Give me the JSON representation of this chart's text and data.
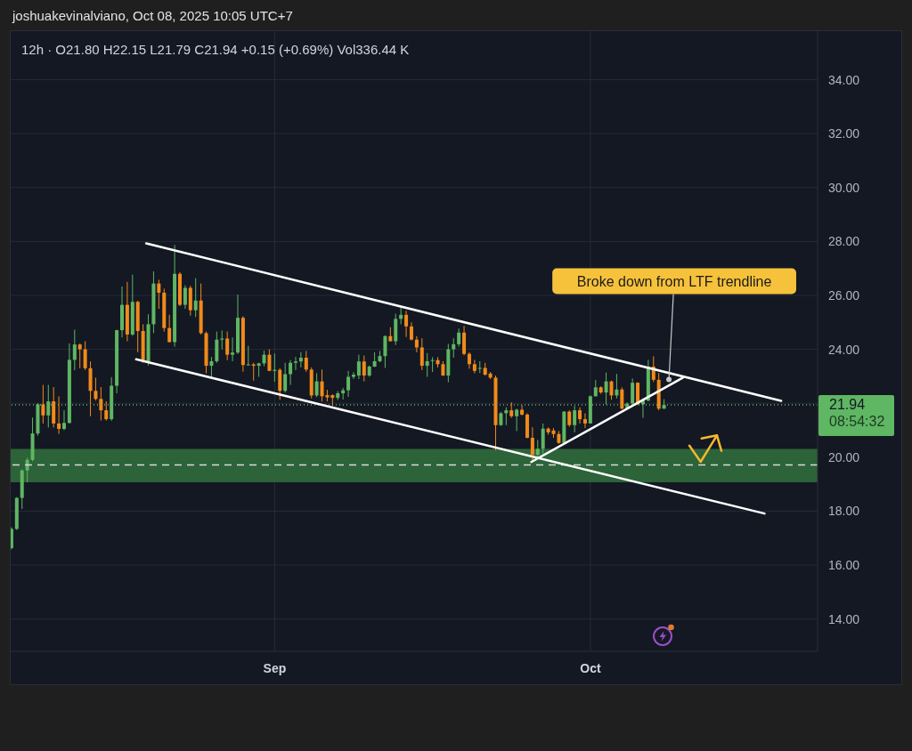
{
  "chart_data": {
    "type": "candlestick",
    "title": "12h · O21.80 H22.15 L21.79 C21.94 +0.15 (+0.69%) Vol336.44 K",
    "x": [
      "2025-08-07T00:00",
      "2025-08-07T12:00",
      "2025-08-08T00:00",
      "2025-08-08T12:00",
      "2025-08-09T00:00",
      "2025-08-09T12:00",
      "2025-08-10T00:00",
      "2025-08-10T12:00",
      "2025-08-11T00:00",
      "2025-08-11T12:00",
      "2025-08-12T00:00",
      "2025-08-12T12:00",
      "2025-08-13T00:00",
      "2025-08-13T12:00",
      "2025-08-14T00:00",
      "2025-08-14T12:00",
      "2025-08-15T00:00",
      "2025-08-15T12:00",
      "2025-08-16T00:00",
      "2025-08-16T12:00",
      "2025-08-17T00:00",
      "2025-08-17T12:00",
      "2025-08-18T00:00",
      "2025-08-18T12:00",
      "2025-08-19T00:00",
      "2025-08-19T12:00",
      "2025-08-20T00:00",
      "2025-08-20T12:00",
      "2025-08-21T00:00",
      "2025-08-21T12:00",
      "2025-08-22T00:00",
      "2025-08-22T12:00",
      "2025-08-23T00:00",
      "2025-08-23T12:00",
      "2025-08-24T00:00",
      "2025-08-24T12:00",
      "2025-08-25T00:00",
      "2025-08-25T12:00",
      "2025-08-26T00:00",
      "2025-08-26T12:00",
      "2025-08-27T00:00",
      "2025-08-27T12:00",
      "2025-08-28T00:00",
      "2025-08-28T12:00",
      "2025-08-29T00:00",
      "2025-08-29T12:00",
      "2025-08-30T00:00",
      "2025-08-30T12:00",
      "2025-08-31T00:00",
      "2025-08-31T12:00",
      "2025-09-01T00:00",
      "2025-09-01T12:00",
      "2025-09-02T00:00",
      "2025-09-02T12:00",
      "2025-09-03T00:00",
      "2025-09-03T12:00",
      "2025-09-04T00:00",
      "2025-09-04T12:00",
      "2025-09-05T00:00",
      "2025-09-05T12:00",
      "2025-09-06T00:00",
      "2025-09-06T12:00",
      "2025-09-07T00:00",
      "2025-09-07T12:00",
      "2025-09-08T00:00",
      "2025-09-08T12:00",
      "2025-09-09T00:00",
      "2025-09-09T12:00",
      "2025-09-10T00:00",
      "2025-09-10T12:00",
      "2025-09-11T00:00",
      "2025-09-11T12:00",
      "2025-09-12T00:00",
      "2025-09-12T12:00",
      "2025-09-13T00:00",
      "2025-09-13T12:00",
      "2025-09-14T00:00",
      "2025-09-14T12:00",
      "2025-09-15T00:00",
      "2025-09-15T12:00",
      "2025-09-16T00:00",
      "2025-09-16T12:00",
      "2025-09-17T00:00",
      "2025-09-17T12:00",
      "2025-09-18T00:00",
      "2025-09-18T12:00",
      "2025-09-19T00:00",
      "2025-09-19T12:00",
      "2025-09-20T00:00",
      "2025-09-20T12:00",
      "2025-09-21T00:00",
      "2025-09-21T12:00",
      "2025-09-22T00:00",
      "2025-09-22T12:00",
      "2025-09-23T00:00",
      "2025-09-23T12:00",
      "2025-09-24T00:00",
      "2025-09-24T12:00",
      "2025-09-25T00:00",
      "2025-09-25T12:00",
      "2025-09-26T00:00",
      "2025-09-26T12:00",
      "2025-09-27T00:00",
      "2025-09-27T12:00",
      "2025-09-28T00:00",
      "2025-09-28T12:00",
      "2025-09-29T00:00",
      "2025-09-29T12:00",
      "2025-09-30T00:00",
      "2025-09-30T12:00",
      "2025-10-01T00:00",
      "2025-10-01T12:00",
      "2025-10-02T00:00",
      "2025-10-02T12:00",
      "2025-10-03T00:00",
      "2025-10-03T12:00",
      "2025-10-04T00:00",
      "2025-10-04T12:00",
      "2025-10-05T00:00",
      "2025-10-05T12:00",
      "2025-10-06T00:00",
      "2025-10-06T12:00",
      "2025-10-07T00:00",
      "2025-10-07T12:00",
      "2025-10-08T00:00"
    ],
    "ohlc": [
      [
        16.63,
        17.4,
        16.58,
        17.34
      ],
      [
        17.34,
        18.52,
        17.3,
        18.49
      ],
      [
        18.49,
        19.55,
        18.08,
        19.51
      ],
      [
        19.51,
        19.98,
        19.07,
        19.9
      ],
      [
        19.9,
        21.47,
        19.85,
        20.88
      ],
      [
        20.88,
        22.0,
        20.8,
        21.96
      ],
      [
        21.96,
        22.68,
        21.25,
        21.55
      ],
      [
        21.55,
        22.68,
        21.1,
        22.07
      ],
      [
        22.07,
        22.6,
        21.1,
        21.25
      ],
      [
        21.25,
        22.26,
        20.86,
        21.05
      ],
      [
        21.05,
        21.74,
        21.0,
        21.27
      ],
      [
        21.27,
        24.22,
        21.25,
        23.61
      ],
      [
        23.61,
        24.73,
        23.23,
        24.18
      ],
      [
        24.18,
        24.22,
        23.3,
        24.0
      ],
      [
        24.0,
        24.3,
        23.23,
        23.3
      ],
      [
        23.3,
        23.55,
        21.52,
        22.46
      ],
      [
        22.46,
        22.95,
        22.1,
        22.16
      ],
      [
        22.16,
        22.6,
        21.36,
        21.74
      ],
      [
        21.74,
        22.07,
        21.36,
        21.41
      ],
      [
        21.41,
        22.97,
        21.35,
        22.65
      ],
      [
        22.65,
        24.72,
        22.37,
        24.71
      ],
      [
        24.71,
        26.33,
        24.44,
        25.65
      ],
      [
        25.65,
        26.5,
        24.3,
        24.55
      ],
      [
        24.55,
        26.77,
        24.5,
        25.76
      ],
      [
        25.76,
        25.8,
        23.89,
        24.68
      ],
      [
        24.68,
        24.93,
        23.5,
        23.55
      ],
      [
        23.55,
        25.3,
        23.4,
        24.93
      ],
      [
        24.93,
        26.89,
        24.6,
        26.44
      ],
      [
        26.44,
        26.58,
        25.5,
        26.1
      ],
      [
        26.1,
        26.25,
        24.66,
        24.79
      ],
      [
        24.79,
        25.28,
        24.25,
        24.27
      ],
      [
        24.27,
        27.87,
        24.1,
        26.8
      ],
      [
        26.8,
        26.86,
        25.6,
        25.65
      ],
      [
        25.65,
        26.38,
        25.5,
        26.28
      ],
      [
        26.28,
        26.36,
        25.25,
        25.45
      ],
      [
        25.45,
        26.64,
        25.2,
        25.81
      ],
      [
        25.81,
        26.44,
        24.55,
        24.6
      ],
      [
        24.6,
        24.66,
        23.11,
        23.39
      ],
      [
        23.39,
        23.72,
        22.95,
        23.56
      ],
      [
        23.56,
        24.66,
        23.5,
        24.36
      ],
      [
        24.36,
        24.7,
        24.0,
        24.4
      ],
      [
        24.4,
        24.66,
        23.6,
        23.8
      ],
      [
        23.8,
        24.44,
        23.56,
        23.88
      ],
      [
        23.88,
        26.03,
        23.83,
        25.17
      ],
      [
        25.17,
        25.23,
        23.17,
        23.42
      ],
      [
        23.42,
        24.13,
        23.4,
        23.44
      ],
      [
        23.44,
        23.5,
        22.84,
        23.39
      ],
      [
        23.39,
        23.5,
        22.98,
        23.48
      ],
      [
        23.48,
        23.95,
        23.38,
        23.8
      ],
      [
        23.8,
        24.0,
        23.2,
        23.2
      ],
      [
        23.2,
        23.85,
        22.8,
        23.24
      ],
      [
        23.24,
        23.3,
        22.13,
        22.46
      ],
      [
        22.46,
        23.5,
        22.4,
        23.08
      ],
      [
        23.08,
        23.6,
        22.68,
        23.5
      ],
      [
        23.5,
        23.72,
        23.23,
        23.55
      ],
      [
        23.55,
        23.9,
        23.33,
        23.69
      ],
      [
        23.69,
        23.94,
        23.17,
        23.25
      ],
      [
        23.25,
        23.33,
        22.18,
        22.29
      ],
      [
        22.29,
        23.11,
        22.23,
        22.81
      ],
      [
        22.81,
        23.25,
        22.07,
        22.26
      ],
      [
        22.3,
        22.5,
        22.07,
        22.22
      ],
      [
        22.3,
        22.33,
        21.9,
        22.2
      ],
      [
        22.2,
        22.45,
        22.12,
        22.37
      ],
      [
        22.37,
        22.57,
        22.14,
        22.48
      ],
      [
        22.48,
        23.2,
        22.24,
        22.98
      ],
      [
        22.98,
        23.16,
        22.9,
        23.06
      ],
      [
        23.03,
        23.8,
        22.9,
        23.55
      ],
      [
        23.55,
        23.77,
        22.81,
        23.03
      ],
      [
        23.03,
        23.4,
        22.98,
        23.36
      ],
      [
        23.36,
        23.89,
        23.34,
        23.56
      ],
      [
        23.56,
        23.94,
        23.52,
        23.75
      ],
      [
        23.75,
        24.52,
        23.31,
        24.49
      ],
      [
        24.49,
        24.82,
        24.3,
        24.3
      ],
      [
        24.3,
        25.32,
        24.16,
        25.13
      ],
      [
        25.13,
        25.59,
        24.93,
        25.28
      ],
      [
        25.28,
        25.43,
        24.46,
        24.85
      ],
      [
        24.85,
        25.0,
        24.33,
        24.36
      ],
      [
        24.36,
        24.49,
        23.89,
        24.07
      ],
      [
        24.07,
        24.41,
        23.23,
        23.39
      ],
      [
        23.39,
        23.86,
        22.98,
        23.56
      ],
      [
        23.58,
        23.71,
        23.16,
        23.6
      ],
      [
        23.6,
        23.71,
        23.33,
        23.45
      ],
      [
        23.45,
        23.56,
        23.01,
        23.03
      ],
      [
        23.03,
        24.2,
        22.78,
        24.0
      ],
      [
        24.0,
        24.41,
        23.69,
        24.19
      ],
      [
        24.19,
        24.77,
        24.1,
        24.62
      ],
      [
        24.62,
        24.87,
        23.78,
        23.83
      ],
      [
        23.83,
        23.89,
        23.28,
        23.45
      ],
      [
        23.45,
        23.61,
        23.11,
        23.2
      ],
      [
        23.28,
        23.56,
        23.12,
        23.31
      ],
      [
        23.31,
        23.5,
        23.03,
        23.06
      ],
      [
        23.1,
        23.16,
        22.9,
        22.95
      ],
      [
        22.95,
        23.03,
        20.26,
        21.19
      ],
      [
        21.19,
        21.68,
        21.16,
        21.63
      ],
      [
        21.63,
        21.85,
        21.19,
        21.74
      ],
      [
        21.74,
        22.04,
        21.46,
        21.52
      ],
      [
        21.52,
        21.8,
        20.97,
        21.76
      ],
      [
        21.76,
        21.93,
        21.55,
        21.58
      ],
      [
        21.58,
        21.63,
        20.7,
        20.72
      ],
      [
        20.72,
        21.11,
        19.84,
        20.09
      ],
      [
        20.09,
        20.64,
        19.92,
        20.31
      ],
      [
        20.31,
        21.25,
        20.14,
        21.06
      ],
      [
        21.06,
        21.1,
        20.83,
        20.92
      ],
      [
        20.99,
        21.08,
        20.72,
        20.86
      ],
      [
        20.86,
        20.97,
        20.5,
        20.53
      ],
      [
        20.53,
        21.71,
        20.53,
        21.69
      ],
      [
        21.69,
        21.74,
        21.13,
        21.19
      ],
      [
        21.19,
        21.9,
        20.92,
        21.74
      ],
      [
        21.74,
        21.85,
        21.25,
        21.41
      ],
      [
        21.41,
        21.63,
        21.08,
        21.25
      ],
      [
        21.25,
        22.29,
        21.25,
        22.26
      ],
      [
        22.26,
        22.86,
        22.25,
        22.59
      ],
      [
        22.59,
        22.63,
        22.35,
        22.4
      ],
      [
        22.4,
        23.14,
        21.96,
        22.81
      ],
      [
        22.81,
        22.84,
        22.13,
        22.29
      ],
      [
        22.29,
        23.09,
        22.18,
        22.51
      ],
      [
        22.51,
        22.59,
        21.78,
        21.8
      ],
      [
        21.8,
        22.03,
        21.78,
        21.99
      ],
      [
        21.99,
        22.92,
        21.96,
        22.76
      ],
      [
        22.76,
        22.78,
        21.93,
        21.96
      ],
      [
        21.96,
        22.18,
        21.46,
        22.1
      ],
      [
        22.1,
        23.61,
        22.07,
        23.36
      ],
      [
        23.36,
        23.74,
        22.79,
        22.87
      ],
      [
        22.87,
        23.12,
        21.74,
        21.8
      ],
      [
        21.8,
        22.15,
        21.79,
        21.94
      ]
    ],
    "colors": [
      "#5fb663",
      "#5fb663",
      "#5fb663",
      "#5fb663",
      "#5fb663",
      "#5fb663",
      "#f28a1a",
      "#5fb663",
      "#f28a1a",
      "#f28a1a",
      "#5fb663",
      "#5fb663",
      "#5fb663",
      "#f28a1a",
      "#f28a1a",
      "#f28a1a",
      "#f28a1a",
      "#f28a1a",
      "#f28a1a",
      "#5fb663",
      "#5fb663",
      "#5fb663",
      "#f28a1a",
      "#5fb663",
      "#f28a1a",
      "#f28a1a",
      "#5fb663",
      "#5fb663",
      "#f28a1a",
      "#f28a1a",
      "#f28a1a",
      "#5fb663",
      "#f28a1a",
      "#5fb663",
      "#f28a1a",
      "#5fb663",
      "#f28a1a",
      "#f28a1a",
      "#5fb663",
      "#5fb663",
      "#5fb663",
      "#f28a1a",
      "#5fb663",
      "#5fb663",
      "#f28a1a",
      "#5fb663",
      "#f28a1a",
      "#5fb663",
      "#5fb663",
      "#f28a1a",
      "#5fb663",
      "#f28a1a",
      "#5fb663",
      "#5fb663",
      "#5fb663",
      "#5fb663",
      "#f28a1a",
      "#f28a1a",
      "#5fb663",
      "#f28a1a",
      "#f28a1a",
      "#f28a1a",
      "#5fb663",
      "#5fb663",
      "#5fb663",
      "#5fb663",
      "#5fb663",
      "#f28a1a",
      "#5fb663",
      "#5fb663",
      "#5fb663",
      "#5fb663",
      "#f28a1a",
      "#5fb663",
      "#5fb663",
      "#f28a1a",
      "#f28a1a",
      "#f28a1a",
      "#f28a1a",
      "#5fb663",
      "#5fb663",
      "#f28a1a",
      "#f28a1a",
      "#5fb663",
      "#5fb663",
      "#5fb663",
      "#f28a1a",
      "#f28a1a",
      "#f28a1a",
      "#5fb663",
      "#f28a1a",
      "#f28a1a",
      "#f28a1a",
      "#5fb663",
      "#5fb663",
      "#f28a1a",
      "#5fb663",
      "#f28a1a",
      "#f28a1a",
      "#f28a1a",
      "#5fb663",
      "#5fb663",
      "#f28a1a",
      "#f28a1a",
      "#f28a1a",
      "#5fb663",
      "#f28a1a",
      "#5fb663",
      "#f28a1a",
      "#f28a1a",
      "#5fb663",
      "#5fb663",
      "#f28a1a",
      "#5fb663",
      "#f28a1a",
      "#5fb663",
      "#f28a1a",
      "#5fb663",
      "#5fb663",
      "#f28a1a",
      "#5fb663",
      "#5fb663",
      "#f28a1a",
      "#f28a1a",
      "#5fb663"
    ],
    "series": [
      {
        "type": "line",
        "color": "#ffffff",
        "x": [
          "2025-08-19T19:00",
          "2025-10-19T03:00"
        ],
        "values": [
          27.93,
          22.09
        ]
      },
      {
        "type": "line",
        "color": "#ffffff",
        "x": [
          "2025-08-18T20:00",
          "2025-10-17T13:00"
        ],
        "values": [
          23.63,
          17.91
        ]
      },
      {
        "type": "line",
        "color": "#ffffff",
        "x": [
          "2025-09-25T09:00",
          "2025-10-09T19:00"
        ],
        "values": [
          19.82,
          22.95
        ]
      }
    ],
    "xlim": [
      "2025-08-06T22:00",
      "2025-10-22T14:00"
    ],
    "xticks": [
      {
        "value": "2025-09-01",
        "label": "Sep"
      },
      {
        "value": "2025-10-01",
        "label": "Oct"
      }
    ],
    "ylim": [
      12.8,
      35.8
    ],
    "yticks": [
      {
        "value": 14,
        "label": "14.00"
      },
      {
        "value": 16,
        "label": "16.00"
      },
      {
        "value": 18,
        "label": "18.00"
      },
      {
        "value": 20,
        "label": "20.00"
      },
      {
        "value": 22,
        "label": null
      },
      {
        "value": 24,
        "label": "24.00"
      },
      {
        "value": 26,
        "label": "26.00"
      },
      {
        "value": 28,
        "label": "28.00"
      },
      {
        "value": 30,
        "label": "30.00"
      },
      {
        "value": 32,
        "label": "32.00"
      },
      {
        "value": 34,
        "label": "34.00"
      }
    ],
    "grid": true,
    "ref_lines": [
      {
        "axis": "y",
        "value": 21.94,
        "label": "21.94",
        "color": "#5fb663",
        "line_style": "dotted"
      },
      {
        "axis": "y",
        "value": 19.71,
        "color": "#d9d9d9",
        "line_style": "dashed"
      }
    ],
    "bands": [
      {
        "axis": "y",
        "from": 19.07,
        "to": 20.31,
        "color": "#2f6b3b"
      }
    ],
    "annotations": [
      "joshuakevinalviano, Oct 08, 2025 10:05 UTC+7",
      "08:54:32",
      {
        "text": "Broke down from LTF trendline",
        "x": "2025-10-08T11:00",
        "y": 22.88
      }
    ]
  }
}
